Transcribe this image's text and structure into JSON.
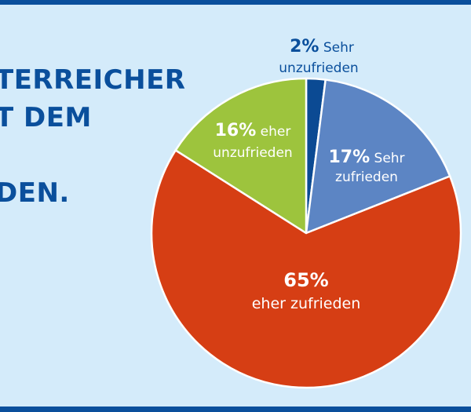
{
  "headline": {
    "lines": [
      "TERREICHER",
      "T DEM",
      "",
      "DEN."
    ]
  },
  "chart_data": {
    "type": "pie",
    "slices": [
      {
        "pct": "2%",
        "value": 2,
        "label_line1": "Sehr",
        "label_line2": "unzufrieden",
        "color": "#0b4a93"
      },
      {
        "pct": "17%",
        "value": 17,
        "label_line1": "Sehr",
        "label_line2": "zufrieden",
        "color": "#5c85c4"
      },
      {
        "pct": "65%",
        "value": 65,
        "label_line1": "",
        "label_line2": "eher zufrieden",
        "color": "#d63e14"
      },
      {
        "pct": "16%",
        "value": 16,
        "label_line1": "eher",
        "label_line2": "unzufrieden",
        "color": "#9dc43d"
      }
    ]
  },
  "colors": {
    "frame": "#0a4f9c",
    "background": "#d4ebfa",
    "text_dark": "#0a4f9c",
    "text_light": "#ffffff"
  }
}
